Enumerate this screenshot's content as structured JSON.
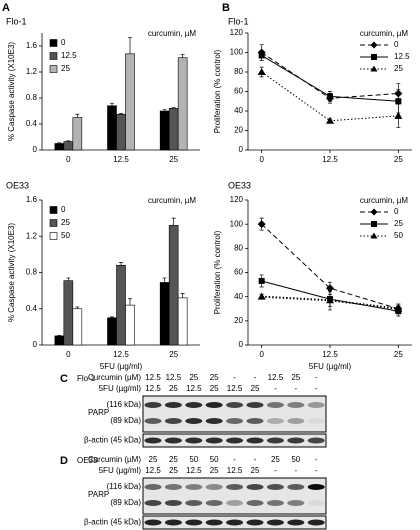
{
  "panels": [
    "A",
    "B"
  ],
  "chart_data": [
    {
      "type": "bar",
      "title": "Flo-1",
      "ylabel": "% Caspase activity (X10E3)",
      "legend_title": "curcumin, µM",
      "categories": [
        "0",
        "12.5",
        "25"
      ],
      "ylim": [
        0,
        1.8
      ],
      "yticks": [
        0,
        0.4,
        0.8,
        1.2,
        1.6
      ],
      "series": [
        {
          "name": "0",
          "color": "#000000",
          "values": [
            0.1,
            0.68,
            0.6
          ],
          "errors": [
            0.01,
            0.04,
            0.02
          ]
        },
        {
          "name": "12.5",
          "color": "#555555",
          "values": [
            0.13,
            0.55,
            0.64
          ],
          "errors": [
            0.01,
            0.01,
            0.01
          ]
        },
        {
          "name": "25",
          "color": "#b3b3b3",
          "values": [
            0.5,
            1.48,
            1.42
          ],
          "errors": [
            0.05,
            0.25,
            0.05
          ]
        }
      ]
    },
    {
      "type": "bar",
      "title": "OE33",
      "ylabel": "% Caspase activity (X10E3)",
      "legend_title": "curcumin, µM",
      "xlabel": "5FU (µg/ml)",
      "categories": [
        "0",
        "12.5",
        "25"
      ],
      "ylim": [
        0,
        1.6
      ],
      "yticks": [
        0,
        0.4,
        0.8,
        1.2,
        1.6
      ],
      "series": [
        {
          "name": "0",
          "color": "#000000",
          "values": [
            0.1,
            0.3,
            0.69
          ],
          "errors": [
            0.005,
            0.01,
            0.05
          ]
        },
        {
          "name": "25",
          "color": "#555555",
          "values": [
            0.71,
            0.88,
            1.32
          ],
          "errors": [
            0.03,
            0.03,
            0.08
          ]
        },
        {
          "name": "50",
          "color": "#ffffff",
          "values": [
            0.4,
            0.44,
            0.52
          ],
          "errors": [
            0.02,
            0.07,
            0.05
          ]
        }
      ]
    },
    {
      "type": "line",
      "title": "Flo-1",
      "ylabel": "Proliferation (% control)",
      "legend_title": "curcumin, µM",
      "x": [
        0,
        12.5,
        25
      ],
      "xlim": [
        -2.5,
        27.5
      ],
      "xticks": [
        0,
        12.5,
        25
      ],
      "ylim": [
        0,
        120
      ],
      "yticks": [
        0,
        20,
        40,
        60,
        80,
        100,
        120
      ],
      "series": [
        {
          "name": "0",
          "color": "#000000",
          "line_style": "dashed",
          "marker": "diamond",
          "values": [
            100,
            53,
            58
          ],
          "errors": [
            8,
            5,
            10
          ]
        },
        {
          "name": "12.5",
          "color": "#000000",
          "line_style": "solid",
          "marker": "square",
          "values": [
            97,
            55,
            50
          ],
          "errors": [
            5,
            5,
            12
          ]
        },
        {
          "name": "25",
          "color": "#000000",
          "line_style": "dotted",
          "marker": "triangle",
          "values": [
            80,
            30,
            35
          ],
          "errors": [
            5,
            2,
            12
          ]
        }
      ]
    },
    {
      "type": "line",
      "title": "OE33",
      "ylabel": "Proliferation (% control)",
      "legend_title": "curcumin, µM",
      "xlabel": "5FU (µg/ml)",
      "x": [
        0,
        12.5,
        25
      ],
      "xlim": [
        -2.5,
        27.5
      ],
      "xticks": [
        0,
        12.5,
        25
      ],
      "ylim": [
        0,
        120
      ],
      "yticks": [
        0,
        20,
        40,
        60,
        80,
        100,
        120
      ],
      "series": [
        {
          "name": "0",
          "color": "#000000",
          "line_style": "dashed",
          "marker": "diamond",
          "values": [
            100,
            47,
            30
          ],
          "errors": [
            5,
            5,
            3
          ]
        },
        {
          "name": "25",
          "color": "#000000",
          "line_style": "solid",
          "marker": "square",
          "values": [
            53,
            38,
            28
          ],
          "errors": [
            5,
            6,
            4
          ]
        },
        {
          "name": "50",
          "color": "#000000",
          "line_style": "dotted",
          "marker": "triangle",
          "values": [
            40,
            37,
            30
          ],
          "errors": [
            2,
            8,
            4
          ]
        }
      ]
    }
  ],
  "blots": [
    {
      "label": "C",
      "cell_line": "Flo-1",
      "row_labels": [
        "Curcumin (µM)",
        "5FU (µg/ml)"
      ],
      "curcumin": [
        "12.5",
        "12.5",
        "25",
        "25",
        "-",
        "-",
        "12.5",
        "25",
        "-"
      ],
      "fu": [
        "12.5",
        "25",
        "12.5",
        "25",
        "12.5",
        "25",
        "-",
        "-",
        "-"
      ],
      "protein": "PARP",
      "band_upper": "(116 kDa)",
      "band_lower": "(89 kDa)",
      "loading": "β-actin (45 kDa)"
    },
    {
      "label": "D",
      "cell_line": "OE33",
      "row_labels": [
        "Curcumin (µM)",
        "5FU (µg/ml)"
      ],
      "curcumin": [
        "25",
        "25",
        "50",
        "50",
        "-",
        "-",
        "25",
        "50",
        "-"
      ],
      "fu": [
        "12.5",
        "25",
        "12.5",
        "25",
        "12.5",
        "25",
        "-",
        "-",
        "-"
      ],
      "protein": "PARP",
      "band_upper": "(116 kDa)",
      "band_lower": "(89 kDa)",
      "loading": "β-actin (45 kDa)"
    }
  ]
}
